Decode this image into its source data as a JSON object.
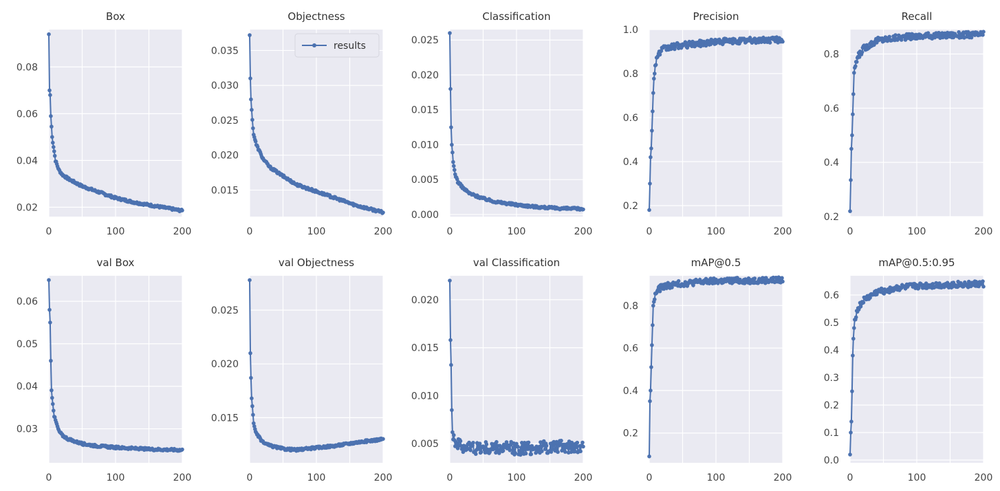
{
  "figure": {
    "series_name": "results",
    "line_color": "#4c72b0",
    "background_color": "#eaeaf2"
  },
  "chart_data": [
    {
      "type": "line",
      "title": "Box",
      "xlim": [
        0,
        200
      ],
      "ylim": [
        0.016,
        0.096
      ],
      "xticks": [
        0,
        100,
        200
      ],
      "yticks": [
        0.02,
        0.04,
        0.06,
        0.08
      ],
      "decimals": 2,
      "show_legend": false,
      "series": [
        {
          "name": "results",
          "color": "#4c72b0",
          "curve": "loss",
          "points": [
            [
              0,
              0.094
            ],
            [
              1,
              0.07
            ],
            [
              2,
              0.068
            ],
            [
              3,
              0.059
            ],
            [
              5,
              0.05
            ],
            [
              7,
              0.046
            ],
            [
              10,
              0.04
            ],
            [
              15,
              0.036
            ],
            [
              20,
              0.034
            ],
            [
              30,
              0.032
            ],
            [
              50,
              0.029
            ],
            [
              70,
              0.027
            ],
            [
              100,
              0.024
            ],
            [
              130,
              0.022
            ],
            [
              160,
              0.0205
            ],
            [
              200,
              0.0185
            ]
          ]
        }
      ]
    },
    {
      "type": "line",
      "title": "Objectness",
      "xlim": [
        0,
        200
      ],
      "ylim": [
        0.0112,
        0.038
      ],
      "xticks": [
        0,
        100,
        200
      ],
      "yticks": [
        0.015,
        0.02,
        0.025,
        0.03,
        0.035
      ],
      "decimals": 3,
      "show_legend": true,
      "legend_position": "top-right",
      "series": [
        {
          "name": "results",
          "color": "#4c72b0",
          "curve": "loss",
          "points": [
            [
              0,
              0.0372
            ],
            [
              1,
              0.031
            ],
            [
              2,
              0.028
            ],
            [
              4,
              0.025
            ],
            [
              6,
              0.023
            ],
            [
              10,
              0.0215
            ],
            [
              15,
              0.0205
            ],
            [
              20,
              0.0195
            ],
            [
              30,
              0.0183
            ],
            [
              50,
              0.017
            ],
            [
              70,
              0.0158
            ],
            [
              100,
              0.0148
            ],
            [
              130,
              0.0138
            ],
            [
              160,
              0.0128
            ],
            [
              200,
              0.0118
            ]
          ]
        }
      ]
    },
    {
      "type": "line",
      "title": "Classification",
      "xlim": [
        0,
        200
      ],
      "ylim": [
        -0.0003,
        0.0265
      ],
      "xticks": [
        0,
        100,
        200
      ],
      "yticks": [
        0,
        0.005,
        0.01,
        0.015,
        0.02,
        0.025
      ],
      "decimals": 3,
      "show_legend": false,
      "series": [
        {
          "name": "results",
          "color": "#4c72b0",
          "curve": "loss",
          "points": [
            [
              0,
              0.026
            ],
            [
              1,
              0.018
            ],
            [
              2,
              0.0125
            ],
            [
              3,
              0.01
            ],
            [
              5,
              0.0075
            ],
            [
              8,
              0.0058
            ],
            [
              12,
              0.0047
            ],
            [
              20,
              0.0038
            ],
            [
              30,
              0.003
            ],
            [
              50,
              0.0023
            ],
            [
              70,
              0.0018
            ],
            [
              100,
              0.0014
            ],
            [
              130,
              0.0011
            ],
            [
              160,
              0.0009
            ],
            [
              200,
              0.0008
            ]
          ]
        }
      ]
    },
    {
      "type": "line",
      "title": "Precision",
      "xlim": [
        0,
        200
      ],
      "ylim": [
        0.15,
        1.0
      ],
      "xticks": [
        0,
        100,
        200
      ],
      "yticks": [
        0.2,
        0.4,
        0.6,
        0.8,
        1.0
      ],
      "decimals": 1,
      "show_legend": false,
      "series": [
        {
          "name": "results",
          "color": "#4c72b0",
          "curve": "rise",
          "points": [
            [
              0,
              0.18
            ],
            [
              2,
              0.42
            ],
            [
              3,
              0.46
            ],
            [
              5,
              0.64
            ],
            [
              7,
              0.77
            ],
            [
              9,
              0.84
            ],
            [
              12,
              0.88
            ],
            [
              20,
              0.91
            ],
            [
              40,
              0.925
            ],
            [
              70,
              0.935
            ],
            [
              100,
              0.945
            ],
            [
              150,
              0.95
            ],
            [
              200,
              0.955
            ]
          ]
        }
      ]
    },
    {
      "type": "line",
      "title": "Recall",
      "xlim": [
        0,
        200
      ],
      "ylim": [
        0.2,
        0.89
      ],
      "xticks": [
        0,
        100,
        200
      ],
      "yticks": [
        0.2,
        0.4,
        0.6,
        0.8
      ],
      "decimals": 1,
      "show_legend": false,
      "series": [
        {
          "name": "results",
          "color": "#4c72b0",
          "curve": "rise",
          "points": [
            [
              0,
              0.22
            ],
            [
              2,
              0.45
            ],
            [
              3,
              0.5
            ],
            [
              4,
              0.58
            ],
            [
              6,
              0.72
            ],
            [
              8,
              0.76
            ],
            [
              12,
              0.79
            ],
            [
              20,
              0.82
            ],
            [
              40,
              0.85
            ],
            [
              70,
              0.86
            ],
            [
              100,
              0.865
            ],
            [
              150,
              0.87
            ],
            [
              200,
              0.872
            ]
          ]
        }
      ]
    },
    {
      "type": "line",
      "title": "val Box",
      "xlim": [
        0,
        200
      ],
      "ylim": [
        0.022,
        0.066
      ],
      "xticks": [
        0,
        100,
        200
      ],
      "yticks": [
        0.03,
        0.04,
        0.05,
        0.06
      ],
      "decimals": 2,
      "show_legend": false,
      "series": [
        {
          "name": "results",
          "color": "#4c72b0",
          "curve": "loss",
          "points": [
            [
              0,
              0.065
            ],
            [
              1,
              0.058
            ],
            [
              2,
              0.055
            ],
            [
              3,
              0.046
            ],
            [
              4,
              0.039
            ],
            [
              6,
              0.036
            ],
            [
              8,
              0.033
            ],
            [
              10,
              0.032
            ],
            [
              15,
              0.0295
            ],
            [
              20,
              0.0285
            ],
            [
              30,
              0.0275
            ],
            [
              50,
              0.0265
            ],
            [
              70,
              0.026
            ],
            [
              100,
              0.0256
            ],
            [
              150,
              0.0252
            ],
            [
              200,
              0.025
            ]
          ]
        }
      ]
    },
    {
      "type": "line",
      "title": "val Objectness",
      "xlim": [
        0,
        200
      ],
      "ylim": [
        0.0108,
        0.0282
      ],
      "xticks": [
        0,
        100,
        200
      ],
      "yticks": [
        0.015,
        0.02,
        0.025
      ],
      "decimals": 3,
      "show_legend": false,
      "series": [
        {
          "name": "results",
          "color": "#4c72b0",
          "curve": "loss",
          "points": [
            [
              0,
              0.0278
            ],
            [
              1,
              0.021
            ],
            [
              2,
              0.0187
            ],
            [
              3,
              0.0168
            ],
            [
              4,
              0.016
            ],
            [
              6,
              0.0145
            ],
            [
              10,
              0.0135
            ],
            [
              20,
              0.0127
            ],
            [
              30,
              0.0124
            ],
            [
              50,
              0.0121
            ],
            [
              70,
              0.012
            ],
            [
              100,
              0.0122
            ],
            [
              130,
              0.0124
            ],
            [
              160,
              0.0127
            ],
            [
              200,
              0.013
            ]
          ]
        }
      ]
    },
    {
      "type": "line",
      "title": "val Classification",
      "xlim": [
        0,
        200
      ],
      "ylim": [
        0.003,
        0.0225
      ],
      "xticks": [
        0,
        100,
        200
      ],
      "yticks": [
        0.005,
        0.01,
        0.015,
        0.02
      ],
      "decimals": 3,
      "show_legend": false,
      "series": [
        {
          "name": "results",
          "color": "#4c72b0",
          "curve": "noisy",
          "points": [
            [
              0,
              0.022
            ],
            [
              1,
              0.0158
            ],
            [
              2,
              0.0132
            ],
            [
              3,
              0.0085
            ],
            [
              4,
              0.0068
            ],
            [
              5,
              0.006
            ],
            [
              8,
              0.0052
            ],
            [
              15,
              0.0048
            ],
            [
              30,
              0.0046
            ],
            [
              60,
              0.0045
            ],
            [
              100,
              0.0045
            ],
            [
              150,
              0.0046
            ],
            [
              200,
              0.0048
            ]
          ]
        }
      ]
    },
    {
      "type": "line",
      "title": "mAP@0.5",
      "xlim": [
        0,
        200
      ],
      "ylim": [
        0.06,
        0.94
      ],
      "xticks": [
        0,
        100,
        200
      ],
      "yticks": [
        0.2,
        0.4,
        0.6,
        0.8
      ],
      "decimals": 1,
      "show_legend": false,
      "series": [
        {
          "name": "results",
          "color": "#4c72b0",
          "curve": "rise",
          "points": [
            [
              0,
              0.09
            ],
            [
              1,
              0.35
            ],
            [
              2,
              0.4
            ],
            [
              4,
              0.62
            ],
            [
              6,
              0.79
            ],
            [
              8,
              0.84
            ],
            [
              12,
              0.87
            ],
            [
              20,
              0.89
            ],
            [
              40,
              0.9
            ],
            [
              70,
              0.91
            ],
            [
              100,
              0.915
            ],
            [
              150,
              0.918
            ],
            [
              200,
              0.92
            ]
          ]
        }
      ]
    },
    {
      "type": "line",
      "title": "mAP@0.5:0.95",
      "xlim": [
        0,
        200
      ],
      "ylim": [
        -0.01,
        0.67
      ],
      "xticks": [
        0,
        100,
        200
      ],
      "yticks": [
        0.0,
        0.1,
        0.2,
        0.3,
        0.4,
        0.5,
        0.6
      ],
      "decimals": 1,
      "show_legend": false,
      "series": [
        {
          "name": "results",
          "color": "#4c72b0",
          "curve": "rise",
          "points": [
            [
              0,
              0.02
            ],
            [
              1,
              0.1
            ],
            [
              2,
              0.14
            ],
            [
              3,
              0.25
            ],
            [
              4,
              0.38
            ],
            [
              5,
              0.45
            ],
            [
              6,
              0.49
            ],
            [
              8,
              0.52
            ],
            [
              12,
              0.55
            ],
            [
              20,
              0.58
            ],
            [
              40,
              0.61
            ],
            [
              70,
              0.625
            ],
            [
              100,
              0.632
            ],
            [
              150,
              0.637
            ],
            [
              200,
              0.64
            ]
          ]
        }
      ]
    }
  ]
}
